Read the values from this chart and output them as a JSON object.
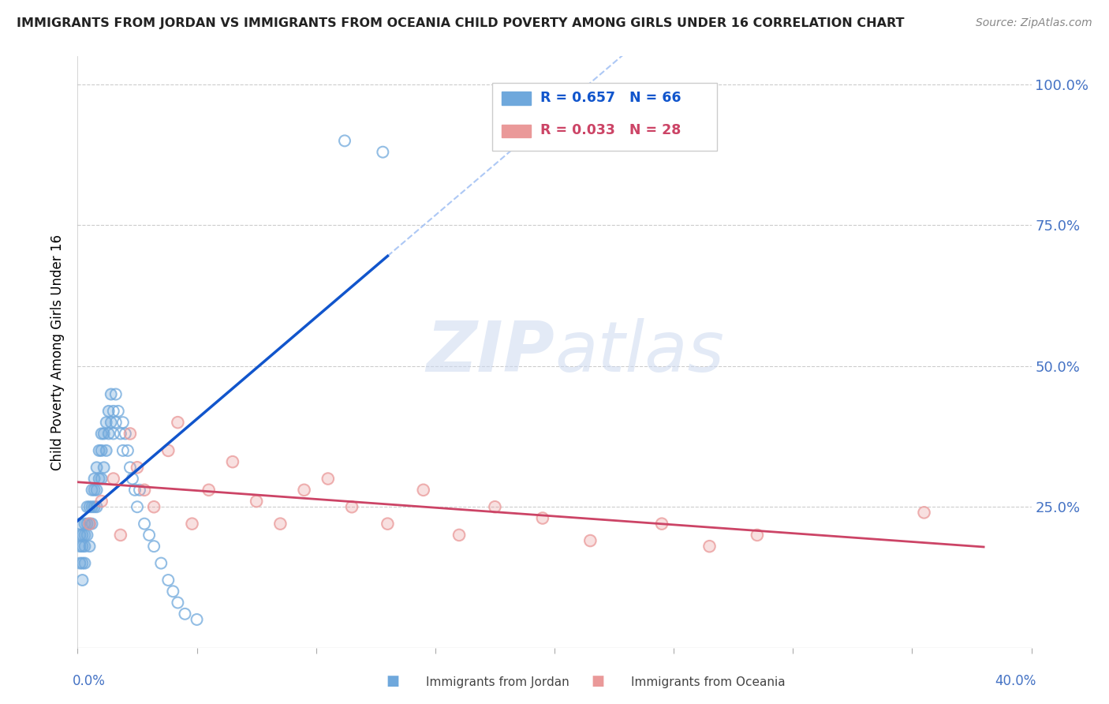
{
  "title": "IMMIGRANTS FROM JORDAN VS IMMIGRANTS FROM OCEANIA CHILD POVERTY AMONG GIRLS UNDER 16 CORRELATION CHART",
  "source": "Source: ZipAtlas.com",
  "ylabel": "Child Poverty Among Girls Under 16",
  "xlim": [
    0.0,
    0.4
  ],
  "ylim": [
    0.0,
    1.05
  ],
  "yticks": [
    0.0,
    0.25,
    0.5,
    0.75,
    1.0
  ],
  "ytick_labels_right": [
    "",
    "25.0%",
    "50.0%",
    "75.0%",
    "100.0%"
  ],
  "watermark_text": "ZIPatlas",
  "legend_jordan": "R = 0.657   N = 66",
  "legend_oceania": "R = 0.033   N = 28",
  "color_jordan": "#6fa8dc",
  "color_oceania": "#ea9999",
  "color_jordan_line": "#1155cc",
  "color_oceania_line": "#cc4466",
  "color_dashed": "#a4c2f4",
  "jordan_x": [
    0.001,
    0.001,
    0.001,
    0.001,
    0.002,
    0.002,
    0.002,
    0.002,
    0.003,
    0.003,
    0.003,
    0.003,
    0.004,
    0.004,
    0.004,
    0.005,
    0.005,
    0.005,
    0.006,
    0.006,
    0.006,
    0.007,
    0.007,
    0.007,
    0.008,
    0.008,
    0.008,
    0.009,
    0.009,
    0.01,
    0.01,
    0.01,
    0.011,
    0.011,
    0.012,
    0.012,
    0.013,
    0.013,
    0.014,
    0.014,
    0.015,
    0.015,
    0.016,
    0.016,
    0.017,
    0.018,
    0.019,
    0.019,
    0.02,
    0.021,
    0.022,
    0.023,
    0.024,
    0.025,
    0.026,
    0.028,
    0.03,
    0.032,
    0.035,
    0.038,
    0.04,
    0.042,
    0.045,
    0.05,
    0.112,
    0.128
  ],
  "jordan_y": [
    0.18,
    0.2,
    0.22,
    0.15,
    0.18,
    0.2,
    0.15,
    0.12,
    0.2,
    0.22,
    0.18,
    0.15,
    0.22,
    0.25,
    0.2,
    0.25,
    0.22,
    0.18,
    0.28,
    0.25,
    0.22,
    0.3,
    0.28,
    0.25,
    0.32,
    0.28,
    0.25,
    0.35,
    0.3,
    0.38,
    0.35,
    0.3,
    0.38,
    0.32,
    0.4,
    0.35,
    0.42,
    0.38,
    0.45,
    0.4,
    0.42,
    0.38,
    0.45,
    0.4,
    0.42,
    0.38,
    0.4,
    0.35,
    0.38,
    0.35,
    0.32,
    0.3,
    0.28,
    0.25,
    0.28,
    0.22,
    0.2,
    0.18,
    0.15,
    0.12,
    0.1,
    0.08,
    0.06,
    0.05,
    0.9,
    0.88
  ],
  "oceania_x": [
    0.005,
    0.01,
    0.015,
    0.018,
    0.022,
    0.025,
    0.028,
    0.032,
    0.038,
    0.042,
    0.048,
    0.055,
    0.065,
    0.075,
    0.085,
    0.095,
    0.105,
    0.115,
    0.13,
    0.145,
    0.16,
    0.175,
    0.195,
    0.215,
    0.245,
    0.265,
    0.285,
    0.355
  ],
  "oceania_y": [
    0.22,
    0.26,
    0.3,
    0.2,
    0.38,
    0.32,
    0.28,
    0.25,
    0.35,
    0.4,
    0.22,
    0.28,
    0.33,
    0.26,
    0.22,
    0.28,
    0.3,
    0.25,
    0.22,
    0.28,
    0.2,
    0.25,
    0.23,
    0.19,
    0.22,
    0.18,
    0.2,
    0.24
  ]
}
